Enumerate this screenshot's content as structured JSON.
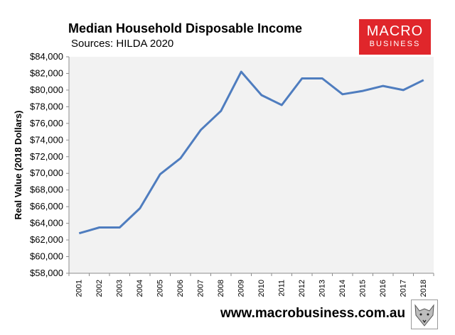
{
  "header": {
    "title": "Median Household Disposable Income",
    "subtitle": "Sources: HILDA 2020"
  },
  "logo": {
    "line1": "MACRO",
    "line2": "BUSINESS",
    "color": "#e0262b"
  },
  "footer": {
    "url": "www.macrobusiness.com.au",
    "icon": "fox-logo-icon"
  },
  "colors": {
    "line": "#4f7dbf",
    "plot_bg": "#f2f2f2",
    "brand": "#e0262b"
  },
  "chart_data": {
    "type": "line",
    "title": "Median Household Disposable Income",
    "subtitle": "Sources: HILDA 2020",
    "xlabel": "",
    "ylabel": "Real Value (2018 Dollars)",
    "x": [
      "2001",
      "2002",
      "2003",
      "2004",
      "2005",
      "2006",
      "2007",
      "2008",
      "2009",
      "2010",
      "2011",
      "2012",
      "2013",
      "2014",
      "2015",
      "2016",
      "2017",
      "2018"
    ],
    "series": [
      {
        "values": [
          62800,
          63500,
          63500,
          65800,
          69900,
          71800,
          75200,
          77500,
          82200,
          79400,
          78200,
          81400,
          81400,
          79500,
          79900,
          80500,
          80000,
          81200
        ]
      }
    ],
    "ylim": [
      58000,
      84000
    ],
    "yticks": [
      58000,
      60000,
      62000,
      64000,
      66000,
      68000,
      70000,
      72000,
      74000,
      76000,
      78000,
      80000,
      82000,
      84000
    ],
    "ytick_labels": [
      "$58,000",
      "$60,000",
      "$62,000",
      "$64,000",
      "$66,000",
      "$68,000",
      "$70,000",
      "$72,000",
      "$74,000",
      "$76,000",
      "$78,000",
      "$80,000",
      "$82,000",
      "$84,000"
    ],
    "grid": false,
    "legend": "none"
  }
}
